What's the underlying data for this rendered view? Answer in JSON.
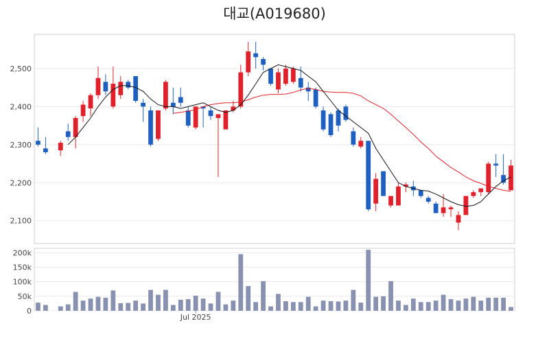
{
  "chart_data": {
    "type": "candlestick",
    "title": "대교(A019680)",
    "price_yticks": [
      "2,100",
      "2,200",
      "2,300",
      "2,400",
      "2,500"
    ],
    "price_ytick_values": [
      2100,
      2200,
      2300,
      2400,
      2500
    ],
    "price_ylim": [
      2040,
      2590
    ],
    "volume_yticks": [
      "0",
      "50k",
      "100k",
      "150k",
      "200k"
    ],
    "volume_ytick_values": [
      0,
      50000,
      100000,
      150000,
      200000
    ],
    "volume_ylim": [
      0,
      215000
    ],
    "xtick_labels": [
      "Jul 2025"
    ],
    "xtick_index": [
      21
    ],
    "colors": {
      "up": "#e0202a",
      "down": "#1f5fbf",
      "volume": "#8891b0",
      "ma_short": "#111111",
      "ma_long": "#e0202a",
      "grid": "#e8e8e8"
    },
    "series": [
      {
        "name": "ohlc",
        "values": [
          [
            2310,
            2345,
            2295,
            2300
          ],
          [
            2290,
            2320,
            2275,
            2280
          ],
          null,
          [
            2285,
            2310,
            2270,
            2305
          ],
          [
            2335,
            2355,
            2310,
            2320
          ],
          [
            2320,
            2375,
            2290,
            2370
          ],
          [
            2375,
            2415,
            2360,
            2405
          ],
          [
            2395,
            2435,
            2375,
            2430
          ],
          [
            2430,
            2505,
            2420,
            2475
          ],
          [
            2465,
            2485,
            2430,
            2440
          ],
          [
            2400,
            2505,
            2395,
            2460
          ],
          [
            2430,
            2480,
            2420,
            2465
          ],
          [
            2465,
            2470,
            2445,
            2450
          ],
          [
            2480,
            2480,
            2410,
            2415
          ],
          [
            2410,
            2420,
            2360,
            2400
          ],
          [
            2390,
            2400,
            2295,
            2300
          ],
          [
            2315,
            2390,
            2310,
            2390
          ],
          [
            2395,
            2470,
            2390,
            2465
          ],
          [
            2410,
            2450,
            2380,
            2400
          ],
          [
            2425,
            2450,
            2400,
            2410
          ],
          [
            2390,
            2400,
            2345,
            2350
          ],
          [
            2345,
            2400,
            2340,
            2400
          ],
          [
            2400,
            2400,
            2345,
            2395
          ],
          [
            2390,
            2400,
            2365,
            2375
          ],
          [
            2370,
            2375,
            2215,
            2380
          ],
          [
            2340,
            2390,
            2340,
            2390
          ],
          [
            2390,
            2415,
            2385,
            2400
          ],
          [
            2400,
            2510,
            2395,
            2490
          ],
          [
            2490,
            2570,
            2480,
            2545
          ],
          [
            2540,
            2570,
            2500,
            2530
          ],
          [
            2525,
            2530,
            2495,
            2510
          ],
          [
            2500,
            2500,
            2455,
            2460
          ],
          [
            2445,
            2500,
            2435,
            2490
          ],
          [
            2460,
            2510,
            2455,
            2500
          ],
          [
            2465,
            2505,
            2460,
            2500
          ],
          [
            2475,
            2505,
            2440,
            2450
          ],
          [
            2450,
            2465,
            2415,
            2440
          ],
          [
            2445,
            2450,
            2395,
            2400
          ],
          [
            2390,
            2400,
            2335,
            2340
          ],
          [
            2380,
            2385,
            2320,
            2325
          ],
          [
            2390,
            2395,
            2335,
            2350
          ],
          [
            2400,
            2405,
            2360,
            2365
          ],
          [
            2335,
            2345,
            2295,
            2300
          ],
          [
            2295,
            2320,
            2290,
            2310
          ],
          [
            2310,
            2310,
            2125,
            2130
          ],
          [
            2145,
            2225,
            2125,
            2210
          ],
          [
            2230,
            2230,
            2165,
            2165
          ],
          [
            2140,
            2160,
            2135,
            2165
          ],
          [
            2140,
            2200,
            2140,
            2190
          ],
          [
            2190,
            2200,
            2175,
            2195
          ],
          [
            2190,
            2205,
            2165,
            2180
          ],
          [
            2180,
            2180,
            2160,
            2165
          ],
          [
            2160,
            2165,
            2145,
            2150
          ],
          [
            2145,
            2150,
            2120,
            2120
          ],
          [
            2120,
            2170,
            2110,
            2135
          ],
          [
            2130,
            2140,
            2110,
            2135
          ],
          [
            2095,
            2125,
            2075,
            2115
          ],
          [
            2115,
            2165,
            2115,
            2165
          ],
          [
            2165,
            2180,
            2160,
            2175
          ],
          [
            2175,
            2185,
            2165,
            2185
          ],
          [
            2175,
            2255,
            2170,
            2250
          ],
          [
            2250,
            2275,
            2215,
            2245
          ],
          [
            2220,
            2275,
            2195,
            2200
          ],
          [
            2180,
            2260,
            2180,
            2245
          ]
        ]
      },
      {
        "name": "volume",
        "values": [
          28000,
          20000,
          0,
          15000,
          22000,
          65000,
          35000,
          42000,
          48000,
          45000,
          70000,
          26000,
          27000,
          35000,
          25000,
          72000,
          55000,
          72000,
          20000,
          38000,
          40000,
          52000,
          42000,
          25000,
          65000,
          22000,
          35000,
          195000,
          85000,
          30000,
          102000,
          15000,
          58000,
          33000,
          30000,
          30000,
          48000,
          15000,
          35000,
          33000,
          32000,
          35000,
          72000,
          28000,
          210000,
          48000,
          50000,
          102000,
          35000,
          20000,
          42000,
          30000,
          30000,
          35000,
          55000,
          40000,
          35000,
          42000,
          48000,
          35000,
          45000,
          45000,
          45000,
          13000
        ]
      },
      {
        "name": "ma_short",
        "values": [
          null,
          null,
          null,
          null,
          2300,
          2320,
          2345,
          2370,
          2400,
          2425,
          2445,
          2455,
          2455,
          2450,
          2440,
          2420,
          2405,
          2400,
          2400,
          2395,
          2400,
          2405,
          2410,
          2400,
          2390,
          2385,
          2390,
          2405,
          2430,
          2460,
          2490,
          2500,
          2510,
          2505,
          2500,
          2495,
          2480,
          2465,
          2440,
          2415,
          2390,
          2375,
          2360,
          2345,
          2330,
          2290,
          2260,
          2230,
          2200,
          2190,
          2185,
          2180,
          2178,
          2170,
          2160,
          2150,
          2142,
          2138,
          2140,
          2150,
          2170,
          2190,
          2205,
          2215
        ]
      },
      {
        "name": "ma_long",
        "values": [
          null,
          null,
          null,
          null,
          null,
          null,
          null,
          null,
          null,
          null,
          null,
          null,
          null,
          null,
          null,
          null,
          null,
          null,
          2382,
          2385,
          2388,
          2392,
          2400,
          2405,
          2408,
          2410,
          2410,
          2412,
          2418,
          2425,
          2430,
          2432,
          2432,
          2433,
          2437,
          2444,
          2448,
          2445,
          2440,
          2438,
          2437,
          2437,
          2435,
          2428,
          2415,
          2405,
          2395,
          2380,
          2362,
          2345,
          2327,
          2307,
          2290,
          2270,
          2255,
          2240,
          2228,
          2215,
          2205,
          2198,
          2190,
          2185,
          2180,
          2177
        ]
      }
    ]
  }
}
